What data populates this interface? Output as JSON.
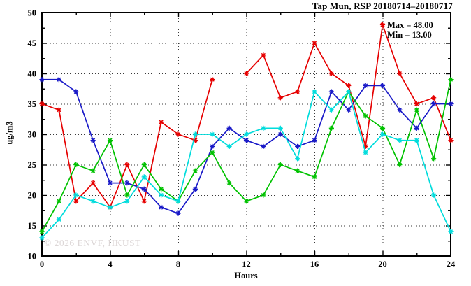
{
  "chart_data": {
    "type": "line",
    "title": "Tap Mun, RSP 20180714–20180717",
    "xlabel": "Hours",
    "ylabel": "ug/m3",
    "xlim": [
      0,
      24
    ],
    "ylim": [
      10,
      50
    ],
    "x": [
      0,
      1,
      2,
      3,
      4,
      5,
      6,
      7,
      8,
      9,
      10,
      11,
      12,
      13,
      14,
      15,
      16,
      17,
      18,
      19,
      20,
      21,
      22,
      23,
      24
    ],
    "series": [
      {
        "name": "red",
        "color": "#e60000",
        "values": [
          35,
          34,
          19,
          22,
          18,
          25,
          19,
          32,
          30,
          29,
          39,
          null,
          40,
          43,
          36,
          37,
          45,
          40,
          38,
          28,
          48,
          40,
          35,
          36,
          29
        ]
      },
      {
        "name": "blue",
        "color": "#1a1ac8",
        "values": [
          39,
          39,
          37,
          29,
          22,
          22,
          21,
          18,
          17,
          21,
          28,
          31,
          29,
          28,
          30,
          28,
          29,
          37,
          34,
          38,
          38,
          34,
          31,
          35,
          35
        ]
      },
      {
        "name": "green",
        "color": "#00c200",
        "values": [
          14,
          19,
          25,
          24,
          29,
          20,
          25,
          21,
          19,
          24,
          27,
          22,
          19,
          20,
          25,
          24,
          23,
          31,
          37,
          33,
          31,
          25,
          34,
          26,
          39
        ]
      },
      {
        "name": "cyan",
        "color": "#00dcdc",
        "values": [
          13,
          16,
          20,
          19,
          18,
          19,
          23,
          20,
          19,
          30,
          30,
          28,
          30,
          31,
          31,
          26,
          37,
          34,
          37,
          27,
          30,
          29,
          29,
          20,
          14
        ]
      }
    ],
    "annotations": {
      "max_label": "Max = 48.00",
      "min_label": "Min = 13.00"
    },
    "watermark": "© 2026 ENVF, HKUST",
    "xticks": {
      "major": [
        0,
        4,
        8,
        12,
        16,
        20,
        24
      ],
      "minor_step": 2,
      "grid": [
        4,
        8,
        12,
        16,
        20
      ]
    },
    "yticks": {
      "major": [
        10,
        15,
        20,
        25,
        30,
        35,
        40,
        45,
        50
      ],
      "minor_step": 2.5,
      "grid": [
        15,
        20,
        25,
        30,
        35,
        40,
        45
      ]
    },
    "grid_style": "dotted",
    "legend_position": "top-right-inside",
    "marker": "asterisk"
  }
}
